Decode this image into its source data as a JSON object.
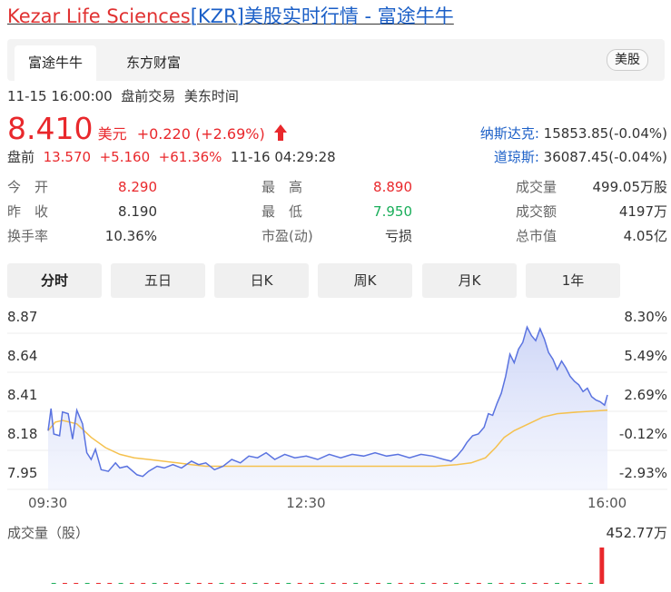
{
  "page_title": {
    "company": "Kezar Life Sciences",
    "code": "[KZR]",
    "suffix": "美股实时行情 - 富途牛牛"
  },
  "tabs": [
    {
      "label": "富途牛牛",
      "active": true
    },
    {
      "label": "东方财富",
      "active": false
    }
  ],
  "market_badge": "美股",
  "quote_meta": {
    "datetime": "11-15 16:00:00",
    "session": "盘前交易",
    "timezone": "美东时间"
  },
  "price": {
    "value": "8.410",
    "currency": "美元",
    "change": "+0.220",
    "change_pct": "(+2.69%)"
  },
  "premarket": {
    "label": "盘前",
    "price": "13.570",
    "change": "+5.160",
    "change_pct": "+61.36%",
    "time": "11-16 04:29:28"
  },
  "indices": [
    {
      "name": "纳斯达克:",
      "value": "15853.85(-0.04%)"
    },
    {
      "name": "道琼斯:",
      "value": "36087.45(-0.04%)"
    }
  ],
  "stats": [
    [
      {
        "label": "今　开",
        "value": "8.290",
        "color": "red"
      },
      {
        "label": "最　高",
        "value": "8.890",
        "color": "red"
      },
      {
        "label": "成交量",
        "value": "499.05万股",
        "color": "plain"
      }
    ],
    [
      {
        "label": "昨　收",
        "value": "8.190",
        "color": "plain"
      },
      {
        "label": "最　低",
        "value": "7.950",
        "color": "green"
      },
      {
        "label": "成交额",
        "value": "4197万",
        "color": "plain"
      }
    ],
    [
      {
        "label": "换手率",
        "value": "10.36%",
        "color": "plain"
      },
      {
        "label": "市盈(动)",
        "value": "亏损",
        "color": "plain"
      },
      {
        "label": "总市值",
        "value": "4.05亿",
        "color": "plain"
      }
    ]
  ],
  "periods": [
    {
      "label": "分时",
      "active": true
    },
    {
      "label": "五日",
      "active": false
    },
    {
      "label": "日K",
      "active": false
    },
    {
      "label": "周K",
      "active": false
    },
    {
      "label": "月K",
      "active": false
    },
    {
      "label": "1年",
      "active": false
    }
  ],
  "colors": {
    "up": "#e9282c",
    "down": "#1aae5a",
    "price_line": "#5a73e0",
    "avg_line": "#f5c14e",
    "link": "#1b5fc7"
  },
  "chart_data": {
    "type": "line",
    "y_left_ticks": [
      "8.87",
      "8.64",
      "8.41",
      "8.18",
      "7.95"
    ],
    "y_right_ticks": [
      "8.30%",
      "5.49%",
      "2.69%",
      "-0.12%",
      "-2.93%"
    ],
    "x_ticks": [
      "09:30",
      "12:30",
      "16:00"
    ],
    "ylim": [
      7.92,
      8.87
    ],
    "x_range_minutes": [
      0,
      390
    ],
    "series": [
      {
        "role": "price",
        "points": [
          [
            0,
            8.2
          ],
          [
            2,
            8.33
          ],
          [
            4,
            8.18
          ],
          [
            8,
            8.17
          ],
          [
            10,
            8.31
          ],
          [
            14,
            8.3
          ],
          [
            17,
            8.15
          ],
          [
            20,
            8.32
          ],
          [
            24,
            8.24
          ],
          [
            27,
            8.07
          ],
          [
            30,
            8.03
          ],
          [
            33,
            8.09
          ],
          [
            37,
            7.97
          ],
          [
            42,
            7.96
          ],
          [
            47,
            8.01
          ],
          [
            50,
            7.98
          ],
          [
            55,
            7.99
          ],
          [
            62,
            7.94
          ],
          [
            66,
            7.93
          ],
          [
            70,
            7.96
          ],
          [
            76,
            7.99
          ],
          [
            81,
            7.98
          ],
          [
            87,
            8.0
          ],
          [
            93,
            7.98
          ],
          [
            100,
            8.02
          ],
          [
            105,
            8.0
          ],
          [
            110,
            8.01
          ],
          [
            116,
            7.97
          ],
          [
            122,
            7.99
          ],
          [
            128,
            8.03
          ],
          [
            134,
            8.01
          ],
          [
            140,
            8.05
          ],
          [
            146,
            8.04
          ],
          [
            152,
            8.07
          ],
          [
            158,
            8.03
          ],
          [
            165,
            8.06
          ],
          [
            172,
            8.04
          ],
          [
            180,
            8.05
          ],
          [
            188,
            8.03
          ],
          [
            196,
            8.06
          ],
          [
            204,
            8.04
          ],
          [
            212,
            8.06
          ],
          [
            220,
            8.05
          ],
          [
            228,
            8.07
          ],
          [
            236,
            8.05
          ],
          [
            244,
            8.06
          ],
          [
            252,
            8.04
          ],
          [
            260,
            8.06
          ],
          [
            268,
            8.05
          ],
          [
            276,
            8.03
          ],
          [
            281,
            8.02
          ],
          [
            285,
            8.05
          ],
          [
            289,
            8.09
          ],
          [
            292,
            8.13
          ],
          [
            296,
            8.17
          ],
          [
            300,
            8.18
          ],
          [
            304,
            8.22
          ],
          [
            307,
            8.3
          ],
          [
            310,
            8.29
          ],
          [
            313,
            8.36
          ],
          [
            316,
            8.42
          ],
          [
            319,
            8.52
          ],
          [
            322,
            8.65
          ],
          [
            325,
            8.6
          ],
          [
            328,
            8.68
          ],
          [
            331,
            8.72
          ],
          [
            334,
            8.81
          ],
          [
            337,
            8.76
          ],
          [
            340,
            8.73
          ],
          [
            343,
            8.8
          ],
          [
            346,
            8.74
          ],
          [
            349,
            8.66
          ],
          [
            352,
            8.62
          ],
          [
            355,
            8.56
          ],
          [
            358,
            8.61
          ],
          [
            361,
            8.57
          ],
          [
            364,
            8.52
          ],
          [
            367,
            8.49
          ],
          [
            370,
            8.47
          ],
          [
            373,
            8.43
          ],
          [
            376,
            8.45
          ],
          [
            379,
            8.4
          ],
          [
            382,
            8.38
          ],
          [
            385,
            8.37
          ],
          [
            388,
            8.35
          ],
          [
            390,
            8.41
          ]
        ]
      },
      {
        "role": "average",
        "points": [
          [
            0,
            8.2
          ],
          [
            5,
            8.25
          ],
          [
            10,
            8.26
          ],
          [
            20,
            8.24
          ],
          [
            30,
            8.16
          ],
          [
            40,
            8.1
          ],
          [
            50,
            8.06
          ],
          [
            60,
            8.04
          ],
          [
            70,
            8.03
          ],
          [
            80,
            8.02
          ],
          [
            90,
            8.01
          ],
          [
            100,
            8.0
          ],
          [
            110,
            7.99
          ],
          [
            120,
            7.99
          ],
          [
            150,
            7.99
          ],
          [
            200,
            7.99
          ],
          [
            250,
            7.99
          ],
          [
            270,
            7.99
          ],
          [
            285,
            8.0
          ],
          [
            295,
            8.01
          ],
          [
            305,
            8.04
          ],
          [
            312,
            8.1
          ],
          [
            318,
            8.16
          ],
          [
            325,
            8.2
          ],
          [
            335,
            8.24
          ],
          [
            345,
            8.28
          ],
          [
            355,
            8.3
          ],
          [
            370,
            8.31
          ],
          [
            390,
            8.32
          ]
        ]
      }
    ],
    "volume": {
      "label": "成交量（股）",
      "max_label": "452.77万",
      "values": [
        0.004,
        0.004,
        0.003,
        0.003,
        0.003,
        0.003,
        0.004,
        0.003,
        0.003,
        0.003,
        0.003,
        0.003,
        0.003,
        0.003,
        0.004,
        0.003,
        0.003,
        0.003,
        0.003,
        0.003,
        0.003,
        0.003,
        0.003,
        0.003,
        0.003,
        0.003,
        0.003,
        0.003,
        0.003,
        0.003,
        0.003,
        0.003,
        0.003,
        0.003,
        0.003,
        0.003,
        0.003,
        0.003,
        0.004,
        0.004,
        0.004,
        0.005,
        0.005,
        0.005,
        0.004,
        0.004,
        0.004,
        0.004,
        0.004,
        1.0
      ]
    }
  }
}
